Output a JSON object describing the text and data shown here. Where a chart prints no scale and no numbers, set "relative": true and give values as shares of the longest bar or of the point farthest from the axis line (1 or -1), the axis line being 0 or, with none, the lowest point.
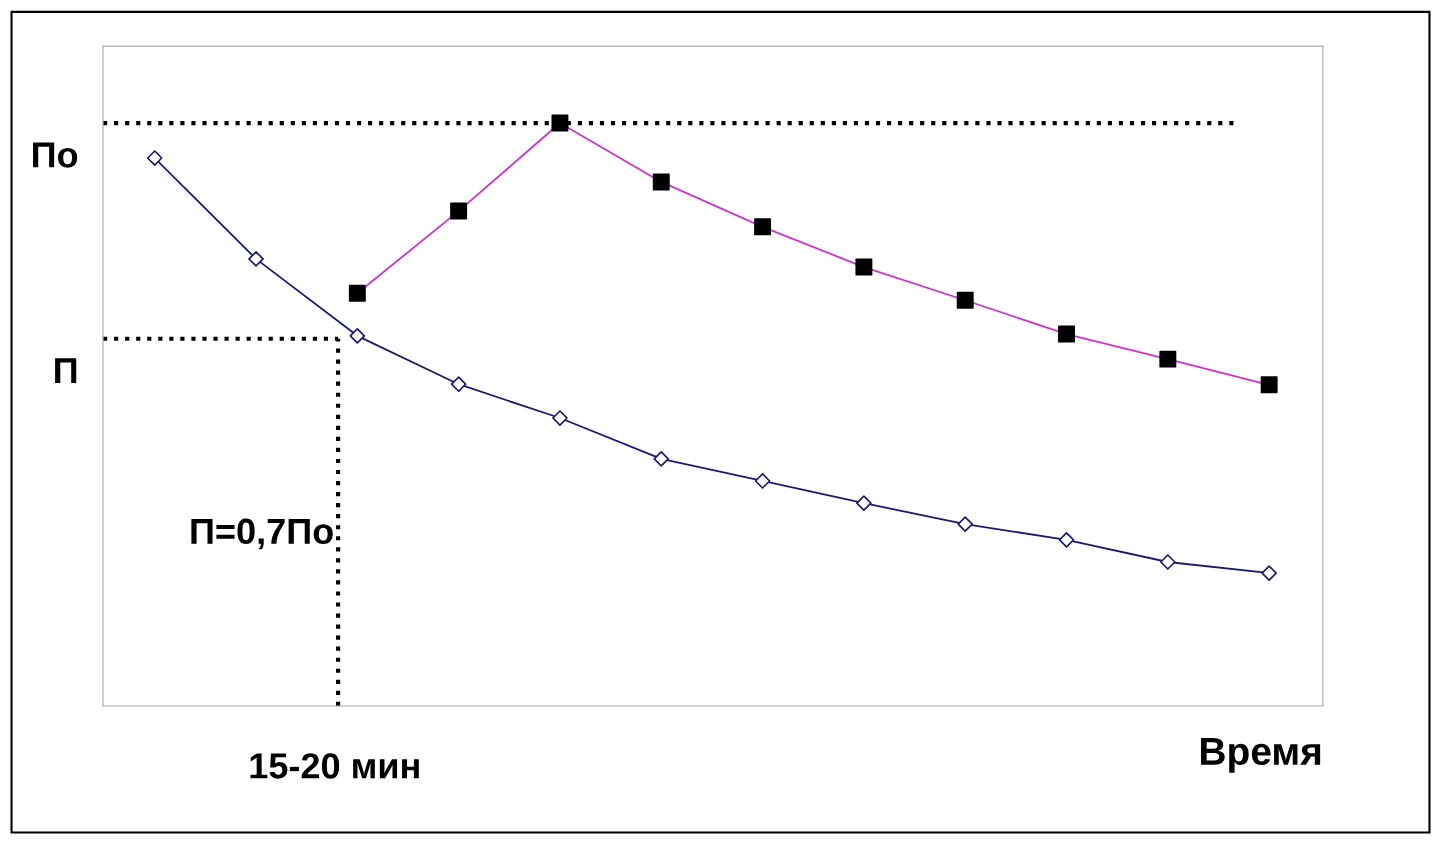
{
  "chart_data": {
    "type": "line",
    "relative": true,
    "xlabel": "Время",
    "categories": [
      null,
      null,
      null,
      null,
      null,
      null,
      null,
      null,
      null,
      null,
      null,
      null
    ],
    "series": [
      {
        "color": "#1a1a6e",
        "marker": "diamond",
        "values": [
          0.94,
          0.767,
          0.635,
          0.552,
          0.494,
          0.424,
          0.386,
          0.348,
          0.312,
          0.285,
          0.247,
          0.228
        ]
      },
      {
        "color": "#cc33cc",
        "marker": "square",
        "values": [
          null,
          null,
          0.708,
          0.849,
          1.0,
          0.899,
          0.822,
          0.753,
          0.696,
          0.638,
          0.595,
          0.551
        ]
      }
    ],
    "ref_lines": [
      {
        "axis": "y",
        "value": 1.0,
        "label": "По",
        "line_style": "dotted",
        "color": "#000000"
      },
      {
        "axis": "y",
        "value": 0.63,
        "label": "П",
        "line_style": "dotted",
        "color": "#000000"
      }
    ],
    "annotations": [
      "П=0,7По",
      "15-20 мин"
    ],
    "line_style": "solid"
  }
}
